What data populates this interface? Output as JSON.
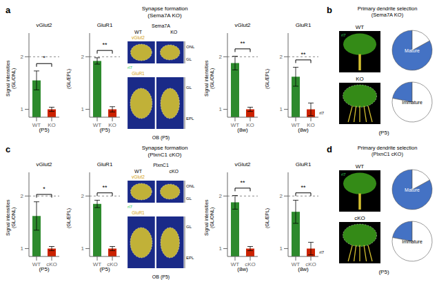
{
  "panels": [
    {
      "label": "a",
      "title": "Synapse formation\n(Sema7A KO)"
    },
    {
      "label": "b",
      "title": "Primary dendrite selection\n(Sema7A KO)",
      "note": "(P5)"
    },
    {
      "label": "c",
      "title": "Synapse formation\n(PlxnC1 cKO)"
    },
    {
      "label": "d",
      "title": "Primary dendrite selection\n(PlxnC1 cKO)",
      "note": "(P5)"
    }
  ],
  "chart_data": [
    {
      "type": "bar",
      "panel": "a",
      "title": "vGlut2",
      "categories": [
        "WT",
        "KO"
      ],
      "values": [
        1.55,
        1.0
      ],
      "errors": [
        0.18,
        0.04
      ],
      "colors": [
        "#2d8a2d",
        "#cc2200"
      ],
      "ylim": [
        0.85,
        2.45
      ],
      "yticks": [
        1,
        2
      ],
      "y_label": "Signal intensities\n(GL/ONL)",
      "x_label": "(P5)",
      "reference_line": 2.0,
      "significance": "*"
    },
    {
      "type": "bar",
      "panel": "a",
      "title": "GluR1",
      "categories": [
        "WT",
        "KO"
      ],
      "values": [
        1.92,
        1.0
      ],
      "errors": [
        0.06,
        0.05
      ],
      "colors": [
        "#2d8a2d",
        "#cc2200"
      ],
      "ylim": [
        0.85,
        2.45
      ],
      "yticks": [
        1,
        2
      ],
      "y_label": "(GL/EPL)",
      "x_label": "(P5)",
      "reference_line": 2.0,
      "significance": "**"
    },
    {
      "type": "image",
      "panel": "a",
      "title": "Sema7A",
      "labels": [
        "WT",
        "KO"
      ],
      "stains": [
        "vGlut2",
        "GluR1"
      ],
      "stain_color": "#d4a010",
      "layers": [
        "ONL",
        "GL",
        "GL",
        "EPL"
      ],
      "marker_label": "rl7",
      "marker_color": "#22cc55",
      "caption": "OB (P5)",
      "colors": [
        "#1a2a88",
        "#d4c030"
      ]
    },
    {
      "type": "bar",
      "panel": "a",
      "title": "vGlut2",
      "categories": [
        "WT",
        "KO"
      ],
      "values": [
        1.88,
        1.0
      ],
      "errors": [
        0.13,
        0.04
      ],
      "colors": [
        "#2d8a2d",
        "#cc2200"
      ],
      "ylim": [
        0.85,
        2.45
      ],
      "yticks": [
        1,
        2
      ],
      "y_label": "Signal intensities\n(GL/ONL)",
      "x_label": "(8w)",
      "reference_line": 2.0,
      "significance": "**"
    },
    {
      "type": "bar",
      "panel": "a",
      "title": "GluR1",
      "categories": [
        "WT",
        "KO"
      ],
      "values": [
        1.62,
        1.0
      ],
      "errors": [
        0.18,
        0.12
      ],
      "colors": [
        "#2d8a2d",
        "#cc2200"
      ],
      "ylim": [
        0.85,
        2.45
      ],
      "yticks": [
        1,
        2
      ],
      "y_label": "(GL/EPL)",
      "x_label": "(8w)",
      "reference_line": 2.0,
      "significance": "**",
      "annotation": "rl7"
    },
    {
      "type": "image",
      "panel": "b",
      "title": "WT",
      "marker_label": "rl7",
      "marker_color": "#33cc55",
      "mature": true,
      "colors": [
        "#000000",
        "#3a9a1a",
        "#d4c030"
      ]
    },
    {
      "type": "pie",
      "panel": "b",
      "values": [
        0.83,
        0.17
      ],
      "colors": [
        "#4472c4",
        "#ffffff"
      ],
      "label": "Mature"
    },
    {
      "type": "image",
      "panel": "b",
      "title": "KO",
      "mature": false,
      "colors": [
        "#000000",
        "#3a9a1a",
        "#d4c030"
      ]
    },
    {
      "type": "pie",
      "panel": "b",
      "values": [
        0.22,
        0.78
      ],
      "colors": [
        "#4472c4",
        "#ffffff"
      ],
      "label": "Immature"
    },
    {
      "type": "bar",
      "panel": "c",
      "title": "vGlut2",
      "categories": [
        "WT",
        "cKO"
      ],
      "values": [
        1.62,
        1.0
      ],
      "errors": [
        0.27,
        0.04
      ],
      "colors": [
        "#2d8a2d",
        "#cc2200"
      ],
      "ylim": [
        0.85,
        2.45
      ],
      "yticks": [
        1,
        2
      ],
      "y_label": "Signal intensities\n(GL/ONL)",
      "x_label": "(P5)",
      "reference_line": 2.0,
      "significance": "*"
    },
    {
      "type": "bar",
      "panel": "c",
      "title": "GluR1",
      "categories": [
        "WT",
        "cKO"
      ],
      "values": [
        1.85,
        1.0
      ],
      "errors": [
        0.07,
        0.04
      ],
      "colors": [
        "#2d8a2d",
        "#cc2200"
      ],
      "ylim": [
        0.85,
        2.45
      ],
      "yticks": [
        1,
        2
      ],
      "y_label": "(GL/EPL)",
      "x_label": "(P5)",
      "reference_line": 2.0,
      "significance": "**"
    },
    {
      "type": "image",
      "panel": "c",
      "title": "PlxnC1",
      "labels": [
        "WT",
        "cKO"
      ],
      "stains": [
        "vGlut2",
        "GluR1"
      ],
      "stain_color": "#d4a010",
      "layers": [
        "ONL",
        "GL",
        "GL",
        "EPL"
      ],
      "marker_label": "rl7",
      "marker_color": "#22cc55",
      "caption": "OB (P5)",
      "colors": [
        "#1a2a88",
        "#d4c030"
      ]
    },
    {
      "type": "bar",
      "panel": "c",
      "title": "vGlut2",
      "categories": [
        "WT",
        "cKO"
      ],
      "values": [
        1.88,
        1.0
      ],
      "errors": [
        0.13,
        0.04
      ],
      "colors": [
        "#2d8a2d",
        "#cc2200"
      ],
      "ylim": [
        0.85,
        2.45
      ],
      "yticks": [
        1,
        2
      ],
      "y_label": "Signal intensities\n(GL/ONL)",
      "x_label": "(8w)",
      "reference_line": 2.0,
      "significance": "**"
    },
    {
      "type": "bar",
      "panel": "c",
      "title": "GluR1",
      "categories": [
        "WT",
        "cKO"
      ],
      "values": [
        1.7,
        1.0
      ],
      "errors": [
        0.22,
        0.12
      ],
      "colors": [
        "#2d8a2d",
        "#cc2200"
      ],
      "ylim": [
        0.85,
        2.45
      ],
      "yticks": [
        1,
        2
      ],
      "y_label": "(GL/EPL)",
      "x_label": "(8w)",
      "reference_line": 2.0,
      "significance": "**",
      "annotation": "rl7"
    },
    {
      "type": "image",
      "panel": "d",
      "title": "WT",
      "marker_label": "rl7",
      "marker_color": "#33cc55",
      "mature": true,
      "colors": [
        "#000000",
        "#3a9a1a",
        "#d4c030"
      ]
    },
    {
      "type": "pie",
      "panel": "d",
      "values": [
        0.83,
        0.17
      ],
      "colors": [
        "#4472c4",
        "#ffffff"
      ],
      "label": "Mature"
    },
    {
      "type": "image",
      "panel": "d",
      "title": "cKO",
      "mature": false,
      "colors": [
        "#000000",
        "#3a9a1a",
        "#d4c030"
      ]
    },
    {
      "type": "pie",
      "panel": "d",
      "values": [
        0.22,
        0.78
      ],
      "colors": [
        "#4472c4",
        "#ffffff"
      ],
      "label": "Immature"
    }
  ]
}
